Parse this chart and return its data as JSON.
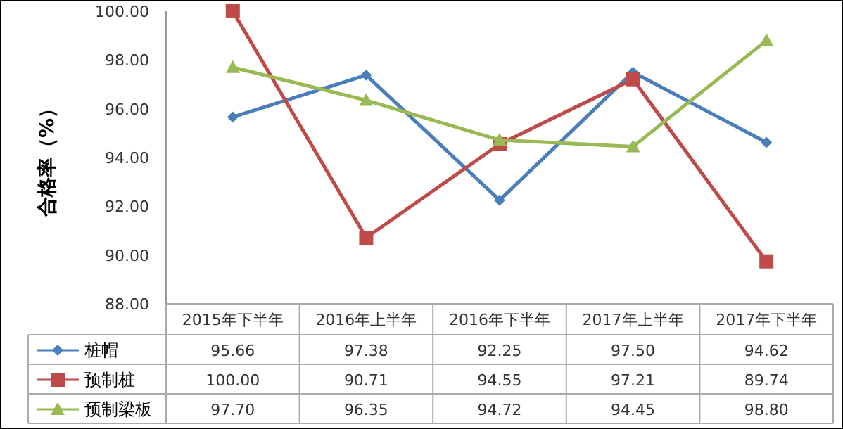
{
  "chart_data": {
    "type": "line",
    "ylabel": "合格率（%）",
    "categories": [
      "2015年下半年",
      "2016年上半年",
      "2016年下半年",
      "2017年上半年",
      "2017年下半年"
    ],
    "series": [
      {
        "name": "桩帽",
        "color": "#4a7ebb",
        "marker": "diamond",
        "values": [
          95.66,
          97.38,
          92.25,
          97.5,
          94.62
        ],
        "value_labels": [
          "95.66",
          "97.38",
          "92.25",
          "97.50",
          "94.62"
        ]
      },
      {
        "name": "预制桩",
        "color": "#be4b48",
        "marker": "square",
        "values": [
          100.0,
          90.71,
          94.55,
          97.21,
          89.74
        ],
        "value_labels": [
          "100.00",
          "90.71",
          "94.55",
          "97.21",
          "89.74"
        ]
      },
      {
        "name": "预制梁板",
        "color": "#98b954",
        "marker": "triangle",
        "values": [
          97.7,
          96.35,
          94.72,
          94.45,
          98.8
        ],
        "value_labels": [
          "97.70",
          "96.35",
          "94.72",
          "94.45",
          "98.80"
        ]
      }
    ],
    "ylim": [
      88,
      100
    ],
    "yticks": [
      {
        "value": 88,
        "label": "88.00"
      },
      {
        "value": 90,
        "label": "90.00"
      },
      {
        "value": 92,
        "label": "92.00"
      },
      {
        "value": 94,
        "label": "94.00"
      },
      {
        "value": 96,
        "label": "96.00"
      },
      {
        "value": 98,
        "label": "98.00"
      },
      {
        "value": 100,
        "label": "100.00"
      }
    ],
    "grid": false,
    "legend": "bottom left"
  }
}
